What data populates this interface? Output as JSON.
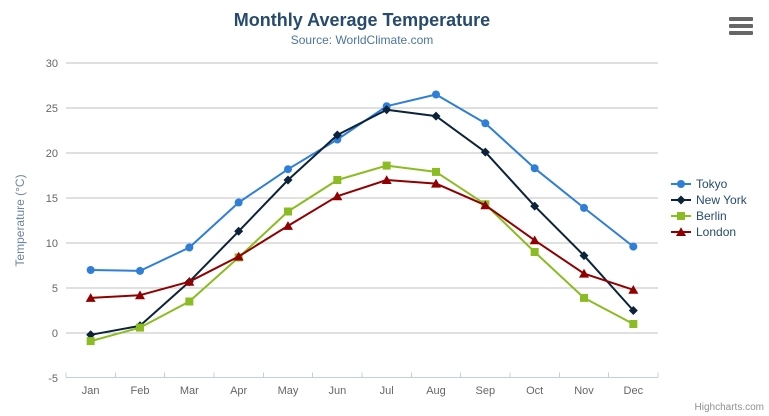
{
  "title": "Monthly Average Temperature",
  "subtitle": "Source: WorldClimate.com",
  "credit": "Highcharts.com",
  "context_menu_icon": "hamburger-menu-icon",
  "colors": {
    "title": "#274b6d",
    "subtitle": "#4d759e",
    "axis_label": "#666666",
    "axis_title": "#6d869f",
    "axis_line": "#c0d0e0",
    "gridline": "#c0c0c0",
    "legend_text": "#274b6d",
    "credit": "#909090",
    "menu_icon": "#666666",
    "background": "#ffffff"
  },
  "chart_data": {
    "type": "line",
    "title": "Monthly Average Temperature",
    "subtitle": "Source: WorldClimate.com",
    "categories": [
      "Jan",
      "Feb",
      "Mar",
      "Apr",
      "May",
      "Jun",
      "Jul",
      "Aug",
      "Sep",
      "Oct",
      "Nov",
      "Dec"
    ],
    "series": [
      {
        "name": "Tokyo",
        "color": "#2f7ed8",
        "marker": "circle",
        "values": [
          7.0,
          6.9,
          9.5,
          14.5,
          18.2,
          21.5,
          25.2,
          26.5,
          23.3,
          18.3,
          13.9,
          9.6
        ]
      },
      {
        "name": "New York",
        "color": "#0d233a",
        "marker": "diamond",
        "values": [
          -0.2,
          0.8,
          5.7,
          11.3,
          17.0,
          22.0,
          24.8,
          24.1,
          20.1,
          14.1,
          8.6,
          2.5
        ]
      },
      {
        "name": "Berlin",
        "color": "#8bbc21",
        "marker": "square",
        "values": [
          -0.9,
          0.6,
          3.5,
          8.4,
          13.5,
          17.0,
          18.6,
          17.9,
          14.3,
          9.0,
          3.9,
          1.0
        ]
      },
      {
        "name": "London",
        "color": "#910000",
        "marker": "triangle",
        "values": [
          3.9,
          4.2,
          5.7,
          8.5,
          11.9,
          15.2,
          17.0,
          16.6,
          14.2,
          10.3,
          6.6,
          4.8
        ]
      }
    ],
    "xlabel": "",
    "ylabel": "Temperature (°C)",
    "ylim": [
      -5,
      30
    ],
    "ytick_step": 5,
    "grid": true,
    "legend_position": "right"
  }
}
